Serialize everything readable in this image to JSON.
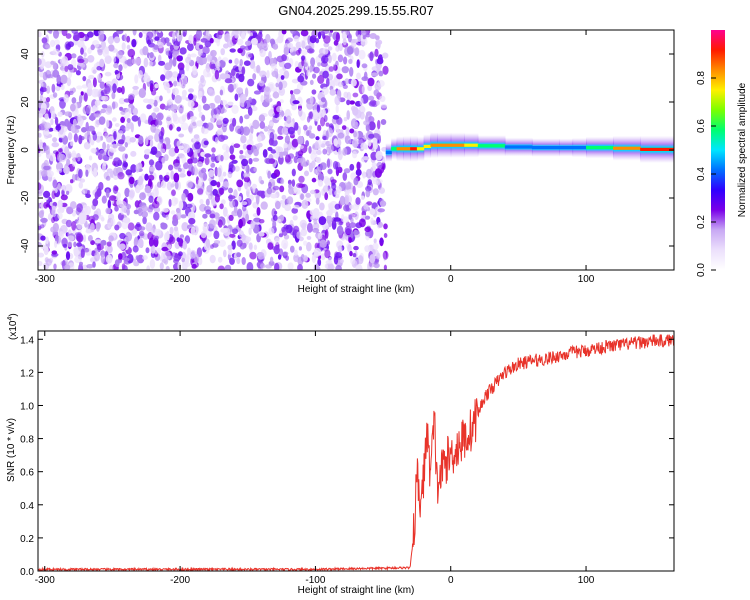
{
  "title": "GN04.2025.299.15.55.R07",
  "chart_data": [
    {
      "type": "heatmap",
      "xlabel": "Height of straight line (km)",
      "ylabel": "Frequency (Hz)",
      "xlim": [
        -305,
        165
      ],
      "ylim": [
        -50,
        50
      ],
      "xticks": [
        -300,
        -200,
        -100,
        0,
        100
      ],
      "yticks": [
        -40,
        -20,
        0,
        20,
        40
      ],
      "noise_region_x": [
        -305,
        -48
      ],
      "signal_band": {
        "x": [
          -48,
          -44,
          -40,
          -35,
          -30,
          -25,
          -20,
          -15,
          -10,
          0,
          10,
          20,
          40,
          60,
          80,
          90,
          100,
          120,
          140,
          165
        ],
        "center_freq": [
          -2,
          0,
          1,
          0,
          1,
          0,
          1,
          2,
          2,
          2,
          2,
          2,
          1.5,
          1,
          1,
          1,
          1,
          1,
          0.5,
          0
        ],
        "peak_amplitude": [
          0.3,
          0.5,
          0.7,
          0.9,
          0.8,
          0.95,
          0.6,
          0.9,
          0.8,
          0.85,
          0.8,
          0.75,
          0.4,
          0.45,
          0.35,
          0.4,
          0.5,
          0.7,
          0.9,
          1.0
        ]
      },
      "colorbar": {
        "label": "Normalized spectral amplitude",
        "range": [
          0,
          1
        ],
        "ticks": [
          0.0,
          0.2,
          0.4,
          0.6,
          0.8
        ],
        "colors": [
          "#ffffff",
          "#ece0fc",
          "#c8a8f4",
          "#7a00e8",
          "#2f00ff",
          "#0070ff",
          "#00e6ff",
          "#00ff70",
          "#7cff00",
          "#fff000",
          "#ff8c00",
          "#ff1a00",
          "#ff0090"
        ]
      }
    },
    {
      "type": "line",
      "xlabel": "Height of straight line (km)",
      "ylabel": "SNR (10 * v/v)",
      "scale_label": "(x10",
      "scale_exp": "4",
      "scale_close": ")",
      "xlim": [
        -305,
        165
      ],
      "ylim": [
        0,
        1.45
      ],
      "xticks": [
        -300,
        -200,
        -100,
        0,
        100
      ],
      "yticks": [
        0.0,
        0.2,
        0.4,
        0.6,
        0.8,
        1.0,
        1.2,
        1.4
      ],
      "ytick_labels": [
        "0.0",
        "0.2",
        "0.4",
        "0.6",
        "0.8",
        "1.0",
        "1.2",
        "1.4"
      ],
      "color": "#e8332a",
      "x": [
        -305,
        -200,
        -100,
        -30,
        -27,
        -25,
        -23,
        -20,
        -18,
        -15,
        -12,
        -10,
        -5,
        0,
        5,
        10,
        15,
        20,
        25,
        30,
        40,
        50,
        60,
        70,
        80,
        90,
        100,
        110,
        120,
        130,
        140,
        150,
        160,
        165
      ],
      "y": [
        0.01,
        0.01,
        0.01,
        0.02,
        0.25,
        0.6,
        0.4,
        0.55,
        0.85,
        0.6,
        0.9,
        0.5,
        0.65,
        0.7,
        0.75,
        0.8,
        0.85,
        0.95,
        1.05,
        1.1,
        1.2,
        1.25,
        1.27,
        1.28,
        1.3,
        1.32,
        1.33,
        1.35,
        1.36,
        1.37,
        1.38,
        1.39,
        1.39,
        1.4
      ]
    }
  ]
}
